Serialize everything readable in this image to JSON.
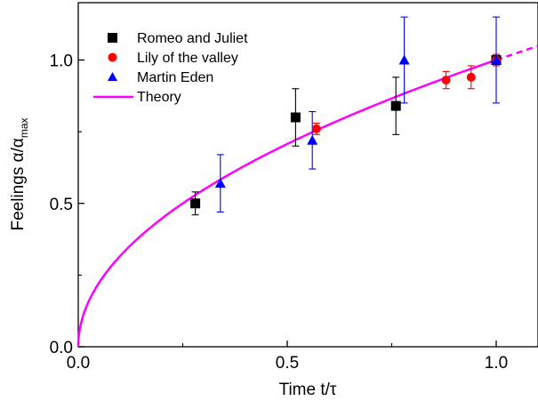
{
  "chart_data": {
    "type": "scatter",
    "xlabel": "Time t/τ",
    "ylabel_main": "Feelings α/α",
    "ylabel_sub": "max",
    "xlim": [
      0,
      1.1
    ],
    "ylim": [
      0,
      1.2
    ],
    "x_ticks": [
      0.0,
      0.5,
      1.0
    ],
    "x_tick_labels": [
      "0.0",
      "0.5",
      "1.0"
    ],
    "y_ticks": [
      0.0,
      0.5,
      1.0
    ],
    "y_tick_labels": [
      "0.0",
      "0.5",
      "1.0"
    ],
    "grid": false,
    "legend_position": "top-left",
    "series": [
      {
        "name": "Romeo and Juliet",
        "marker": "square",
        "color": "#000000",
        "points": [
          {
            "x": 0.28,
            "y": 0.5,
            "err": 0.04
          },
          {
            "x": 0.52,
            "y": 0.8,
            "err": 0.1
          },
          {
            "x": 0.76,
            "y": 0.84,
            "err": 0.1
          },
          {
            "x": 1.0,
            "y": 1.0,
            "err": 0.02
          }
        ]
      },
      {
        "name": "Lily of the valley",
        "marker": "circle",
        "color": "#ff0000",
        "points": [
          {
            "x": 0.57,
            "y": 0.76,
            "err": 0.02
          },
          {
            "x": 0.88,
            "y": 0.93,
            "err": 0.03
          },
          {
            "x": 0.94,
            "y": 0.94,
            "err": 0.04
          },
          {
            "x": 1.0,
            "y": 1.0,
            "err": 0.02
          }
        ]
      },
      {
        "name": "Martin Eden",
        "marker": "triangle",
        "color": "#0000ff",
        "points": [
          {
            "x": 0.34,
            "y": 0.57,
            "err": 0.1
          },
          {
            "x": 0.56,
            "y": 0.72,
            "err": 0.1
          },
          {
            "x": 0.78,
            "y": 1.0,
            "err": 0.15
          },
          {
            "x": 1.0,
            "y": 1.0,
            "err": 0.15
          }
        ]
      }
    ],
    "theory": {
      "name": "Theory",
      "color": "#ff00ff",
      "function": "sqrt",
      "x_solid_end": 1.0,
      "x_dashed_end": 1.1
    }
  }
}
